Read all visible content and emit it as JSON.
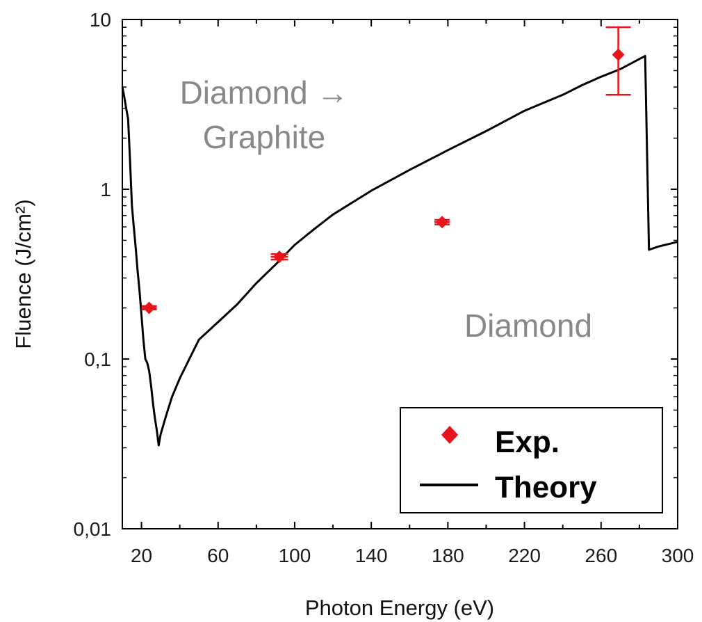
{
  "chart_data": {
    "type": "scatter",
    "xlabel": "Photon Energy (eV)",
    "ylabel": "Fluence (J/cm²)",
    "xlim": [
      10,
      300
    ],
    "ylim": [
      0.01,
      10
    ],
    "yscale": "log",
    "x_ticks": [
      "20",
      "60",
      "100",
      "140",
      "180",
      "220",
      "260",
      "300"
    ],
    "y_ticks": [
      "0,01",
      "0,1",
      "1",
      "10"
    ],
    "grid": false,
    "legend_position": "bottom-right",
    "annotations": {
      "region_upper_line1": "Diamond →",
      "region_upper_line2": "Graphite",
      "region_lower": "Diamond"
    },
    "colors": {
      "exp": "#e8141b",
      "theory": "#000000"
    },
    "series": [
      {
        "name": "Exp.",
        "kind": "scatter-errorbar",
        "points": [
          {
            "x": 24,
            "y": 0.2,
            "xerr": 4,
            "ylo": 0.196,
            "yhi": 0.205
          },
          {
            "x": 92,
            "y": 0.4,
            "xerr": 4.5,
            "ylo": 0.385,
            "yhi": 0.415
          },
          {
            "x": 177,
            "y": 0.64,
            "xerr": 4,
            "ylo": 0.62,
            "yhi": 0.66
          },
          {
            "x": 269,
            "y": 6.2,
            "xerr": 0,
            "ylo": 3.6,
            "yhi": 9.0
          }
        ]
      },
      {
        "name": "Theory",
        "kind": "line",
        "x": [
          10,
          11,
          12,
          13,
          14,
          15,
          16,
          17,
          18,
          19,
          20,
          21,
          22,
          23,
          24,
          25,
          26,
          27,
          28,
          29,
          30,
          33,
          36,
          40,
          45,
          50,
          60,
          70,
          80,
          90,
          100,
          110,
          120,
          140,
          160,
          180,
          200,
          220,
          240,
          250,
          260,
          270,
          283,
          285,
          290,
          300
        ],
        "y": [
          4.0,
          3.5,
          3.0,
          2.6,
          1.5,
          0.8,
          0.6,
          0.45,
          0.33,
          0.25,
          0.18,
          0.13,
          0.1,
          0.095,
          0.085,
          0.07,
          0.055,
          0.045,
          0.038,
          0.031,
          0.036,
          0.047,
          0.06,
          0.077,
          0.1,
          0.13,
          0.165,
          0.21,
          0.28,
          0.36,
          0.47,
          0.58,
          0.71,
          0.98,
          1.3,
          1.7,
          2.2,
          2.9,
          3.6,
          4.1,
          4.6,
          5.1,
          6.1,
          0.44,
          0.46,
          0.49
        ]
      }
    ]
  }
}
